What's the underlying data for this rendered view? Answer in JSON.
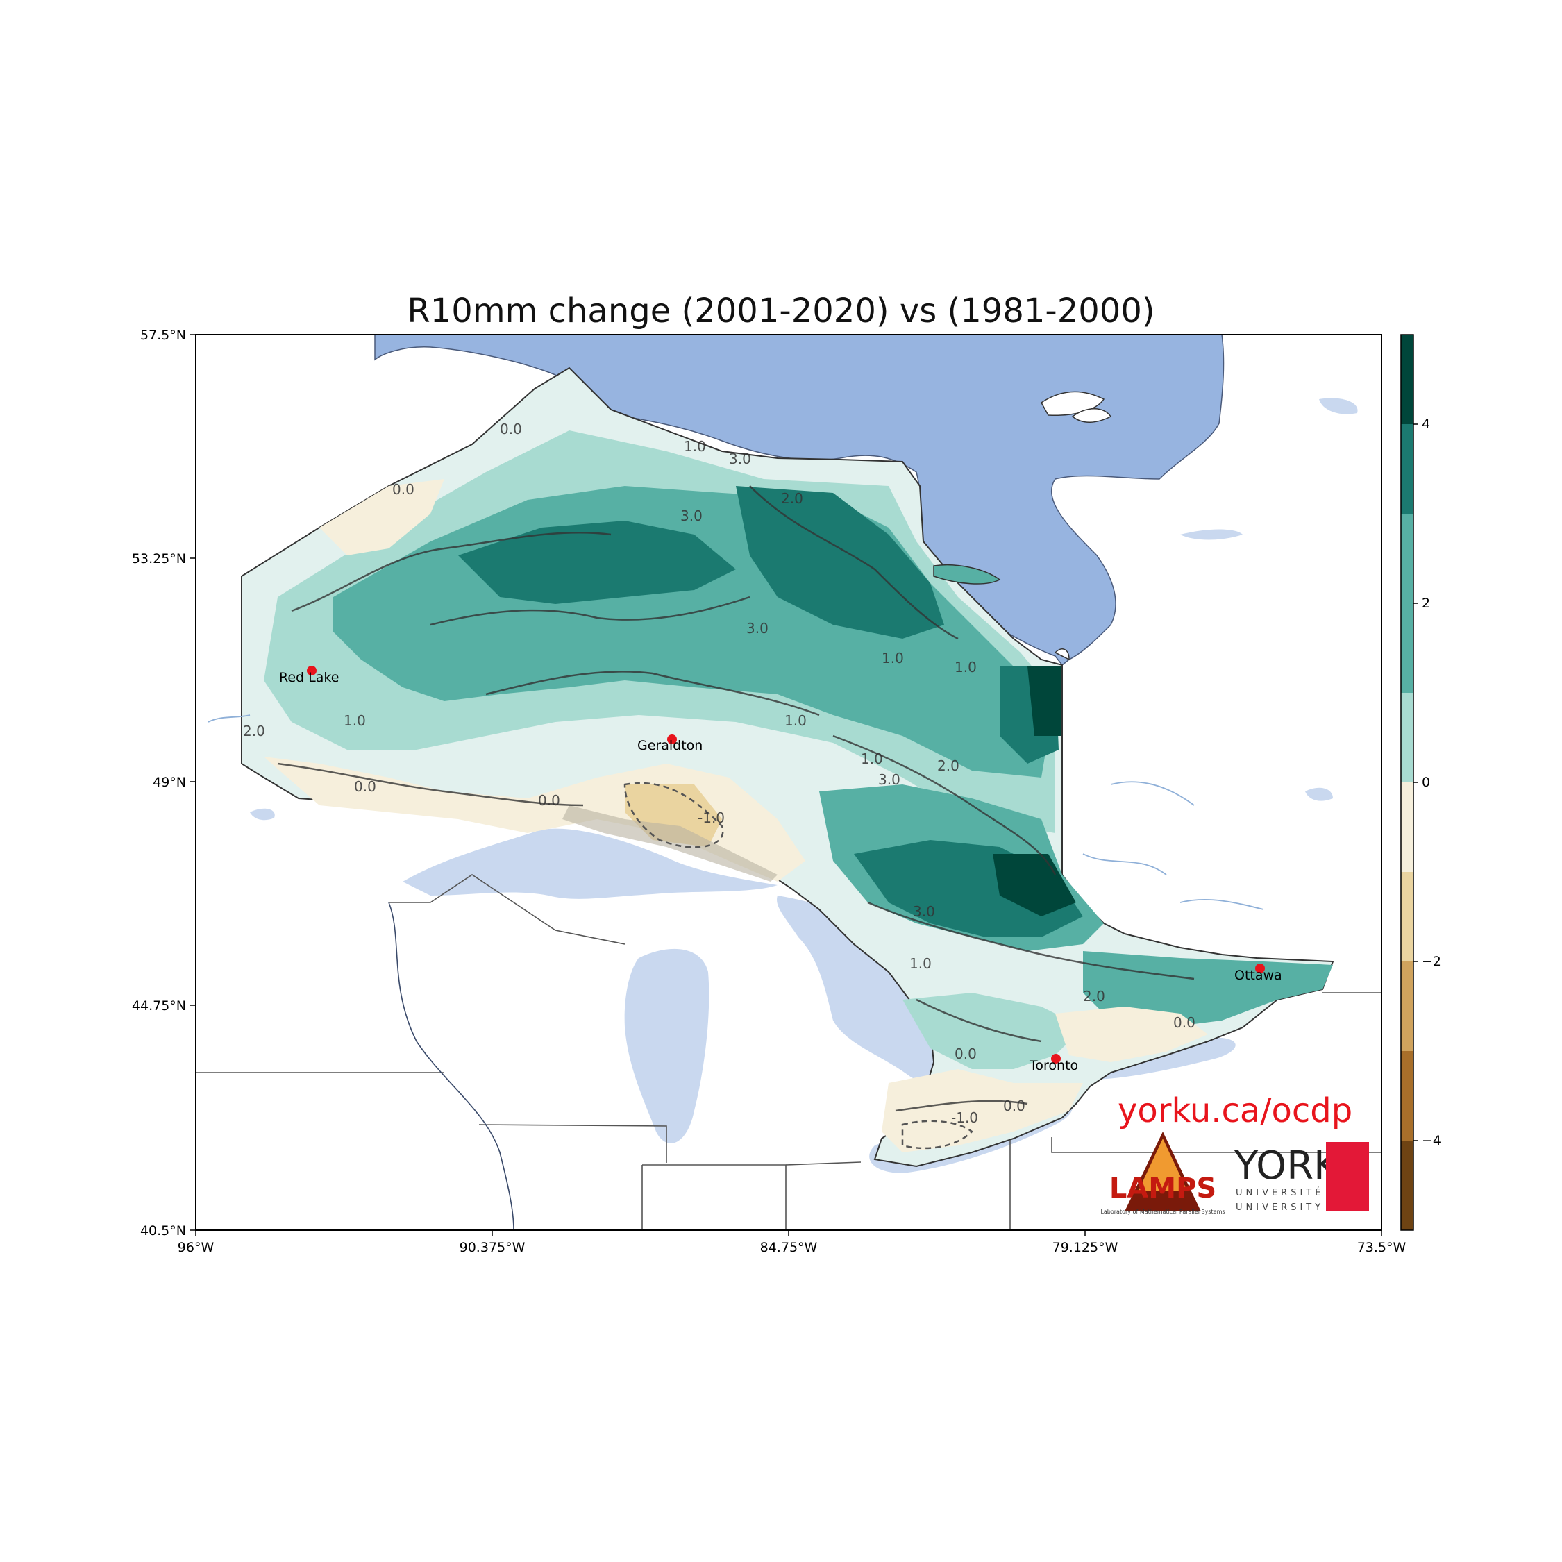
{
  "title": "R10mm change (2001-2020) vs (1981-2000)",
  "url_text": "yorku.ca/ocdp",
  "axes": {
    "lat_ticks": [
      "57.5°N",
      "53.25°N",
      "49°N",
      "44.75°N",
      "40.5°N"
    ],
    "lon_ticks": [
      "96°W",
      "90.375°W",
      "84.75°W",
      "79.125°W",
      "73.5°W"
    ]
  },
  "colorbar": {
    "ticks": [
      "4",
      "2",
      "0",
      "−2",
      "−4"
    ],
    "colors": [
      "#00463a",
      "#1b7a70",
      "#57b0a4",
      "#a8dbd1",
      "#e2f1ee",
      "#f6efdc",
      "#ead4a0",
      "#d0a35d",
      "#a86f2a",
      "#6e4313"
    ]
  },
  "cities": [
    {
      "name": "Red Lake"
    },
    {
      "name": "Geraldton"
    },
    {
      "name": "Ottawa"
    },
    {
      "name": "Toronto"
    }
  ],
  "contour_labels": [
    "0.0",
    "1.0",
    "2.0",
    "3.0",
    "-1.0"
  ],
  "logos": {
    "lamps": "LAMPS",
    "lamps_sub": "Laboratory of Mathematical Parallel Systems",
    "york": "YORK",
    "york_u1": "UNIVERSITÉ",
    "york_u2": "UNIVERSITY"
  },
  "colors": {
    "water": "#97b4e0",
    "lake_light": "#c9d8ef",
    "city_dot": "#e8141c",
    "url": "#e8141c"
  }
}
